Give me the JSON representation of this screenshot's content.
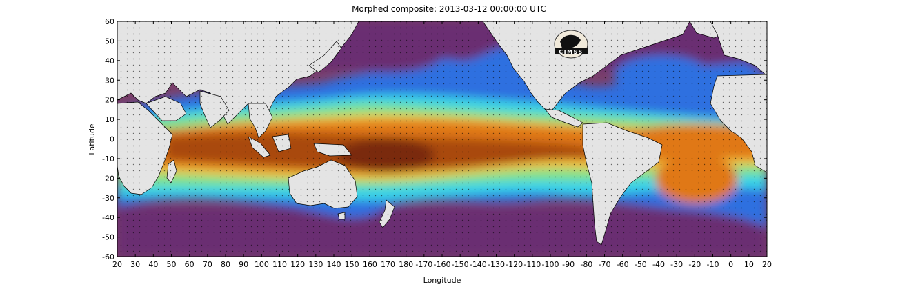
{
  "title": "Morphed composite: 2013-03-12 00:00:00 UTC",
  "logo_text": "CIMSS",
  "axes": {
    "xlabel": "Longitude",
    "ylabel": "Latitude",
    "xticks": [
      "20",
      "30",
      "40",
      "50",
      "60",
      "70",
      "80",
      "90",
      "100",
      "110",
      "120",
      "130",
      "140",
      "150",
      "160",
      "170",
      "180",
      "-170",
      "-160",
      "-150",
      "-140",
      "-130",
      "-120",
      "-110",
      "-100",
      "-90",
      "-80",
      "-70",
      "-60",
      "-50",
      "-40",
      "-30",
      "-20",
      "-10",
      "0",
      "10",
      "20"
    ],
    "yticks": [
      "60",
      "50",
      "40",
      "30",
      "20",
      "10",
      "0",
      "-10",
      "-20",
      "-30",
      "-40",
      "-50",
      "-60"
    ]
  },
  "colors": {
    "land": "#e4e4e4",
    "very_dry": "#5e2a6f",
    "dry": "#7a3f6a",
    "blue": "#2f6fe0",
    "cyan": "#37d3e8",
    "green": "#7fe38a",
    "yellow": "#f2c23a",
    "orange": "#e07818",
    "deep": "#a94a10",
    "wettest": "#7a2a08"
  }
}
